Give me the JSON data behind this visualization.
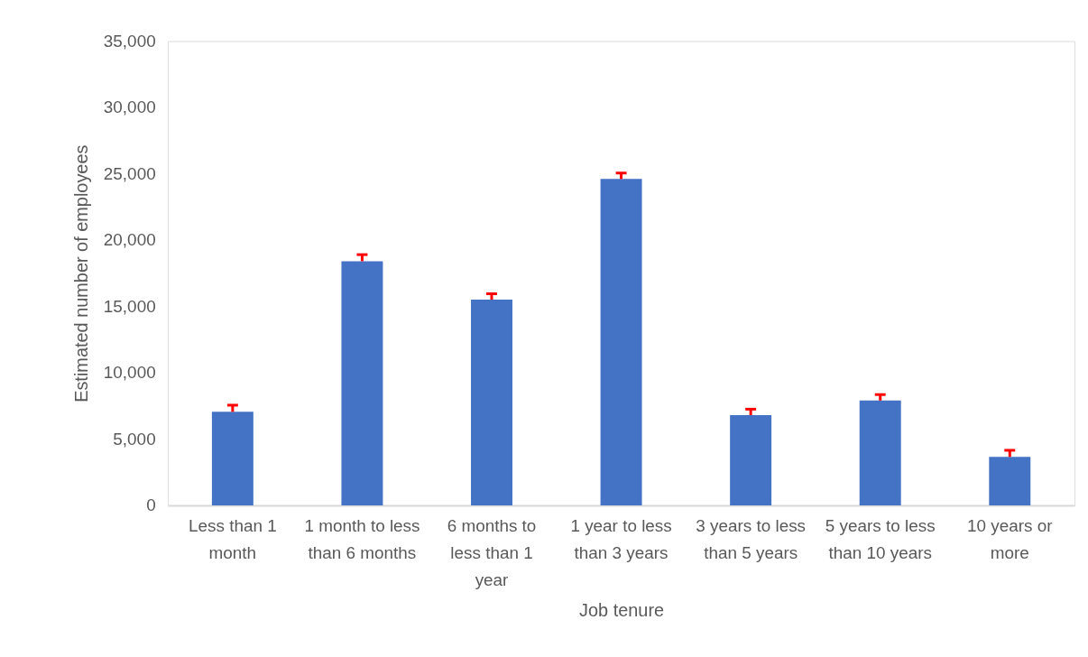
{
  "chart_data": {
    "type": "bar",
    "xlabel": "Job tenure",
    "ylabel": "Estimated number of employees",
    "categories": [
      "Less than 1 month",
      "1 month to less than 6 months",
      "6 months to less than 1 year",
      "1 year to less than 3 years",
      "3 years to less than 5 years",
      "5 years to less than 10 years",
      "10 years or more"
    ],
    "values": [
      7050,
      18400,
      15500,
      24600,
      6800,
      7900,
      3650
    ],
    "errors": [
      [
        7050,
        7550
      ],
      [
        18400,
        18900
      ],
      [
        15500,
        15950
      ],
      [
        24600,
        25050
      ],
      [
        6800,
        7250
      ],
      [
        7900,
        8350
      ],
      [
        3650,
        4150
      ]
    ],
    "color": "#4472c4",
    "ylim": [
      0,
      35000
    ],
    "yticks": [
      0,
      {
        "value": 5000,
        "label": "5,000"
      },
      {
        "value": 10000,
        "label": "10,000"
      },
      {
        "value": 15000,
        "label": "15,000"
      },
      {
        "value": 20000,
        "label": "20,000"
      },
      {
        "value": 25000,
        "label": "25,000"
      },
      {
        "value": 30000,
        "label": "30,000"
      },
      {
        "value": 35000,
        "label": "35,000"
      }
    ],
    "grid": false
  }
}
